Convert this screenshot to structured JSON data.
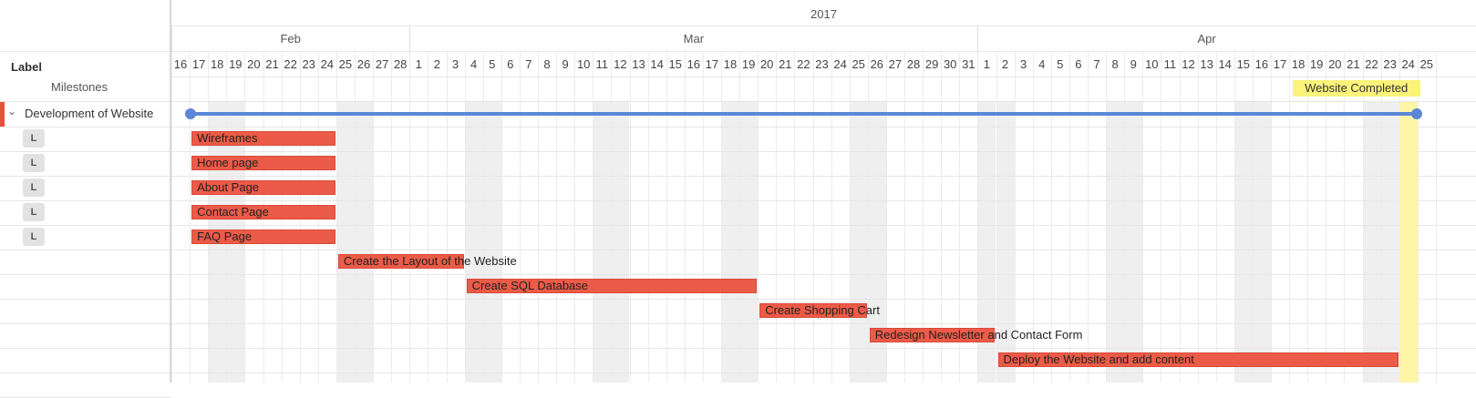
{
  "header": {
    "year": "2017",
    "months": [
      {
        "label": "Feb",
        "start_day_index": 0,
        "days": 13
      },
      {
        "label": "Mar",
        "start_day_index": 13,
        "days": 31
      },
      {
        "label": "Apr",
        "start_day_index": 44,
        "days": 25
      }
    ],
    "days": [
      "16",
      "17",
      "18",
      "19",
      "20",
      "21",
      "22",
      "23",
      "24",
      "25",
      "26",
      "27",
      "28",
      "1",
      "2",
      "3",
      "4",
      "5",
      "6",
      "7",
      "8",
      "9",
      "10",
      "11",
      "12",
      "13",
      "14",
      "15",
      "16",
      "17",
      "18",
      "19",
      "20",
      "21",
      "22",
      "23",
      "24",
      "25",
      "26",
      "27",
      "28",
      "29",
      "30",
      "31",
      "1",
      "2",
      "3",
      "4",
      "5",
      "6",
      "7",
      "8",
      "9",
      "10",
      "11",
      "12",
      "13",
      "14",
      "15",
      "16",
      "17",
      "18",
      "19",
      "20",
      "21",
      "22",
      "23",
      "24",
      "25"
    ]
  },
  "left_panel": {
    "column_header": "Label",
    "milestones_label": "Milestones",
    "group_label": "Development of Website",
    "badge_label": "L"
  },
  "milestone": {
    "label": "Website Completed",
    "date": "Apr 24",
    "color": "#fbf37a"
  },
  "group_line": {
    "start": "Feb 17",
    "end": "Apr 24",
    "color": "#5b87d6"
  },
  "tasks": [
    {
      "name": "Wireframes",
      "start": "Feb 17",
      "end": "Feb 24"
    },
    {
      "name": "Home page",
      "start": "Feb 17",
      "end": "Feb 24"
    },
    {
      "name": "About Page",
      "start": "Feb 17",
      "end": "Feb 24"
    },
    {
      "name": "Contact Page",
      "start": "Feb 17",
      "end": "Feb 24"
    },
    {
      "name": "FAQ Page",
      "start": "Feb 17",
      "end": "Feb 24"
    },
    {
      "name": "Create the Layout of the Website",
      "start": "Feb 25",
      "end": "Mar 3"
    },
    {
      "name": "Create SQL Database",
      "start": "Mar 4",
      "end": "Mar 19"
    },
    {
      "name": "Create Shopping Cart",
      "start": "Mar 20",
      "end": "Mar 25"
    },
    {
      "name": "Redesign Newsletter and Contact Form",
      "start": "Mar 26",
      "end": "Apr 1"
    },
    {
      "name": "Deploy the Website and add content",
      "start": "Apr 2",
      "end": "Apr 23"
    }
  ],
  "colors": {
    "task": "#ec5b47",
    "weekend": "#efefef",
    "today": "#fdf6a8",
    "accent": "#e8503a"
  }
}
